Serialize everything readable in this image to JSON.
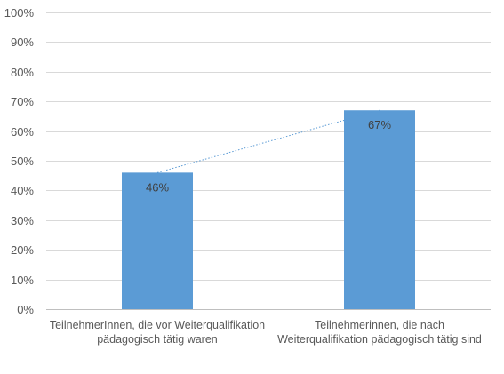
{
  "chart_data": {
    "type": "bar",
    "title": "",
    "xlabel": "",
    "ylabel": "",
    "categories": [
      [
        "TeilnehmerInnen, die vor Weiterqualifikation",
        "pädagogisch tätig waren"
      ],
      [
        "Teilnehmerinnen, die nach",
        "Weiterqualifikation pädagogisch tätig sind"
      ]
    ],
    "series": [
      {
        "values": [
          46,
          67
        ],
        "color": "#5b9bd5"
      }
    ],
    "data_labels": [
      "46%",
      "67%"
    ],
    "ylim": [
      0,
      100
    ],
    "y_ticks": [
      "0%",
      "10%",
      "20%",
      "30%",
      "40%",
      "50%",
      "60%",
      "70%",
      "80%",
      "90%",
      "100%"
    ],
    "y_tick_values": [
      0,
      10,
      20,
      30,
      40,
      50,
      60,
      70,
      80,
      90,
      100
    ],
    "grid": true,
    "legend": "none",
    "trendline": {
      "style": "dotted",
      "color": "#5b9bd5"
    },
    "colors": {
      "gridline": "#d9d9d9",
      "axis": "#bfbfbf",
      "bar": "#5b9bd5"
    }
  }
}
